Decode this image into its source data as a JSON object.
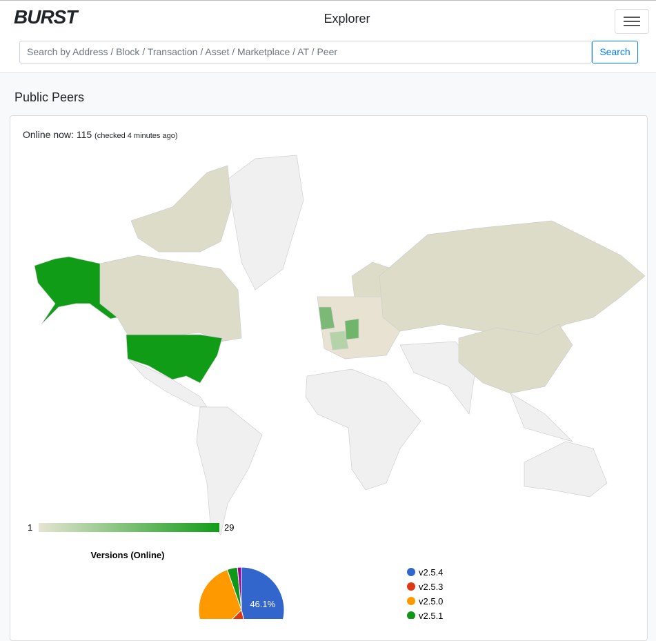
{
  "header": {
    "logo": "BURST",
    "title": "Explorer",
    "search_placeholder": "Search by Address / Block / Transaction / Asset / Marketplace / AT / Peer",
    "search_button": "Search"
  },
  "section": {
    "title": "Public Peers",
    "online_label": "Online now:",
    "online_count": 115,
    "checked_note": "(checked 4 minutes ago)"
  },
  "map_legend": {
    "min": 1,
    "max": 29
  },
  "chart_data": {
    "type": "pie",
    "title": "Versions (Online)",
    "categories": [
      "v2.5.4",
      "v2.5.3",
      "v2.5.0",
      "v2.5.1",
      null
    ],
    "values": [
      46.1,
      16.5,
      32,
      3.9,
      1.5
    ],
    "value_labels": [
      "46.1%",
      null,
      null,
      null,
      null
    ],
    "colors": [
      "#3366cc",
      "#dc3912",
      "#ff9900",
      "#109618",
      "#990099"
    ]
  }
}
